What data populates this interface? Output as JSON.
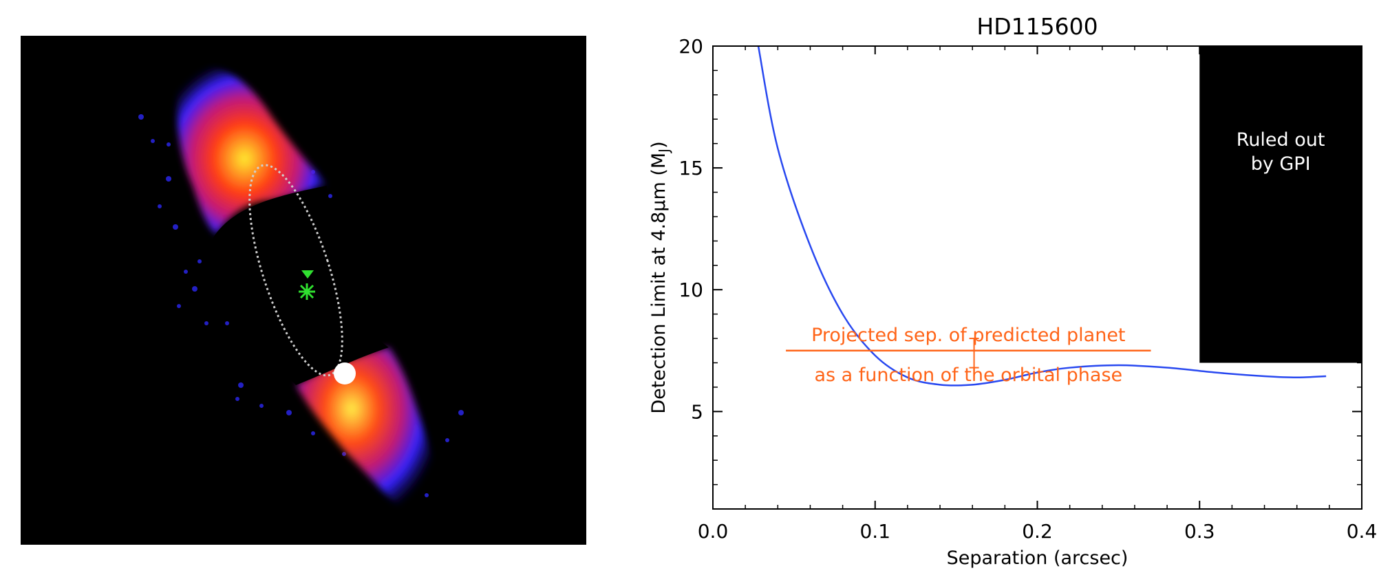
{
  "chart_data": {
    "type": "line",
    "title": "HD115600",
    "xlabel": "Separation (arcsec)",
    "ylabel_parts": [
      "Detection Limit at 4.8",
      "μ",
      "m (M",
      "J",
      ")"
    ],
    "xlim": [
      0.0,
      0.4
    ],
    "ylim": [
      1,
      20
    ],
    "x_ticks": [
      "0.0",
      "0.1",
      "0.2",
      "0.3",
      "0.4"
    ],
    "y_ticks": [
      "5",
      "10",
      "15",
      "20"
    ],
    "series": [
      {
        "color": "#2848f0",
        "x": [
          0.028,
          0.04,
          0.06,
          0.08,
          0.1,
          0.12,
          0.14,
          0.16,
          0.18,
          0.2,
          0.22,
          0.25,
          0.28,
          0.31,
          0.34,
          0.36,
          0.378
        ],
        "y": [
          20.0,
          15.8,
          11.8,
          9.0,
          7.3,
          6.4,
          6.1,
          6.1,
          6.3,
          6.6,
          6.8,
          6.9,
          6.8,
          6.6,
          6.45,
          6.4,
          6.45
        ]
      }
    ],
    "ruled_out_region": {
      "x": [
        0.3,
        0.4
      ],
      "y": [
        7.0,
        20
      ],
      "label_lines": [
        "Ruled out",
        "by GPI"
      ],
      "color": "#000000"
    },
    "predicted_planet": {
      "color": "#ff6418",
      "x_range": [
        0.045,
        0.27
      ],
      "y": 7.5,
      "center_x": 0.161,
      "bar_y": [
        6.8,
        8.0
      ],
      "label_above": "Projected sep. of predicted planet",
      "label_below": "as a function of the orbital phase"
    }
  },
  "disk_image": {
    "background": "#000000",
    "description_colors": [
      "#2020ff",
      "#ff2020",
      "#ffe020",
      "#ffffff",
      "#20dd20"
    ]
  }
}
